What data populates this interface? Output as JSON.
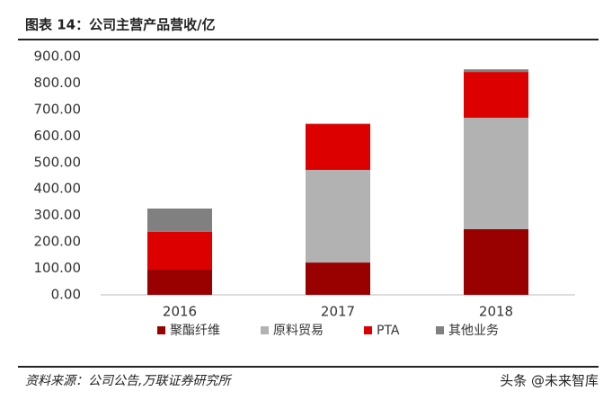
{
  "chart_data": {
    "type": "stacked-bar",
    "title": "图表 14：公司主营产品营收/亿",
    "categories": [
      "2016",
      "2017",
      "2018"
    ],
    "series": [
      {
        "name": "聚酯纤维",
        "color": "#990000",
        "values": [
          95,
          122,
          248
        ]
      },
      {
        "name": "原料贸易",
        "color": "#b2b2b2",
        "values": [
          0,
          350,
          421
        ]
      },
      {
        "name": "PTA",
        "color": "#dd0000",
        "values": [
          143,
          173,
          173
        ]
      },
      {
        "name": "其他业务",
        "color": "#808080",
        "values": [
          88,
          2,
          10
        ]
      }
    ],
    "ylim": [
      0,
      900
    ],
    "yticks": [
      {
        "value": 0,
        "label": "0.00"
      },
      {
        "value": 100,
        "label": "100.00"
      },
      {
        "value": 200,
        "label": "200.00"
      },
      {
        "value": 300,
        "label": "300.00"
      },
      {
        "value": 400,
        "label": "400.00"
      },
      {
        "value": 500,
        "label": "500.00"
      },
      {
        "value": 600,
        "label": "600.00"
      },
      {
        "value": 700,
        "label": "700.00"
      },
      {
        "value": 800,
        "label": "800.00"
      },
      {
        "value": 900,
        "label": "900.00"
      }
    ],
    "grid": false,
    "legend": "bottom"
  },
  "source": "资料来源：公司公告,万联证券研究所",
  "watermark": "头条 @未来智库"
}
